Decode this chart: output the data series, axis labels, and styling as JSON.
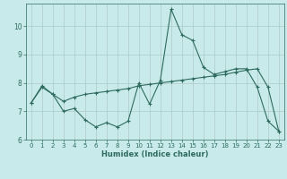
{
  "xlabel": "Humidex (Indice chaleur)",
  "background_color": "#c8eaea",
  "line_color": "#2e6b5e",
  "grid_color": "#b0c8c8",
  "x_values": [
    0,
    1,
    2,
    3,
    4,
    5,
    6,
    7,
    8,
    9,
    10,
    11,
    12,
    13,
    14,
    15,
    16,
    17,
    18,
    19,
    20,
    21,
    22,
    23
  ],
  "line1_y": [
    7.3,
    7.9,
    7.6,
    7.0,
    7.1,
    6.7,
    6.45,
    6.6,
    6.45,
    6.65,
    8.0,
    7.25,
    8.1,
    10.6,
    9.7,
    9.5,
    8.55,
    8.3,
    8.4,
    8.5,
    8.5,
    7.85,
    6.65,
    6.3
  ],
  "line2_y": [
    7.3,
    7.85,
    7.6,
    7.35,
    7.5,
    7.6,
    7.65,
    7.7,
    7.75,
    7.8,
    7.9,
    7.95,
    8.0,
    8.05,
    8.1,
    8.15,
    8.2,
    8.25,
    8.3,
    8.38,
    8.45,
    8.5,
    7.85,
    6.3
  ],
  "ylim": [
    6.0,
    10.8
  ],
  "xlim": [
    -0.5,
    23.5
  ],
  "yticks": [
    6,
    7,
    8,
    9,
    10
  ],
  "xticks": [
    0,
    1,
    2,
    3,
    4,
    5,
    6,
    7,
    8,
    9,
    10,
    11,
    12,
    13,
    14,
    15,
    16,
    17,
    18,
    19,
    20,
    21,
    22,
    23
  ],
  "tick_fontsize": 5.0,
  "xlabel_fontsize": 6.0
}
